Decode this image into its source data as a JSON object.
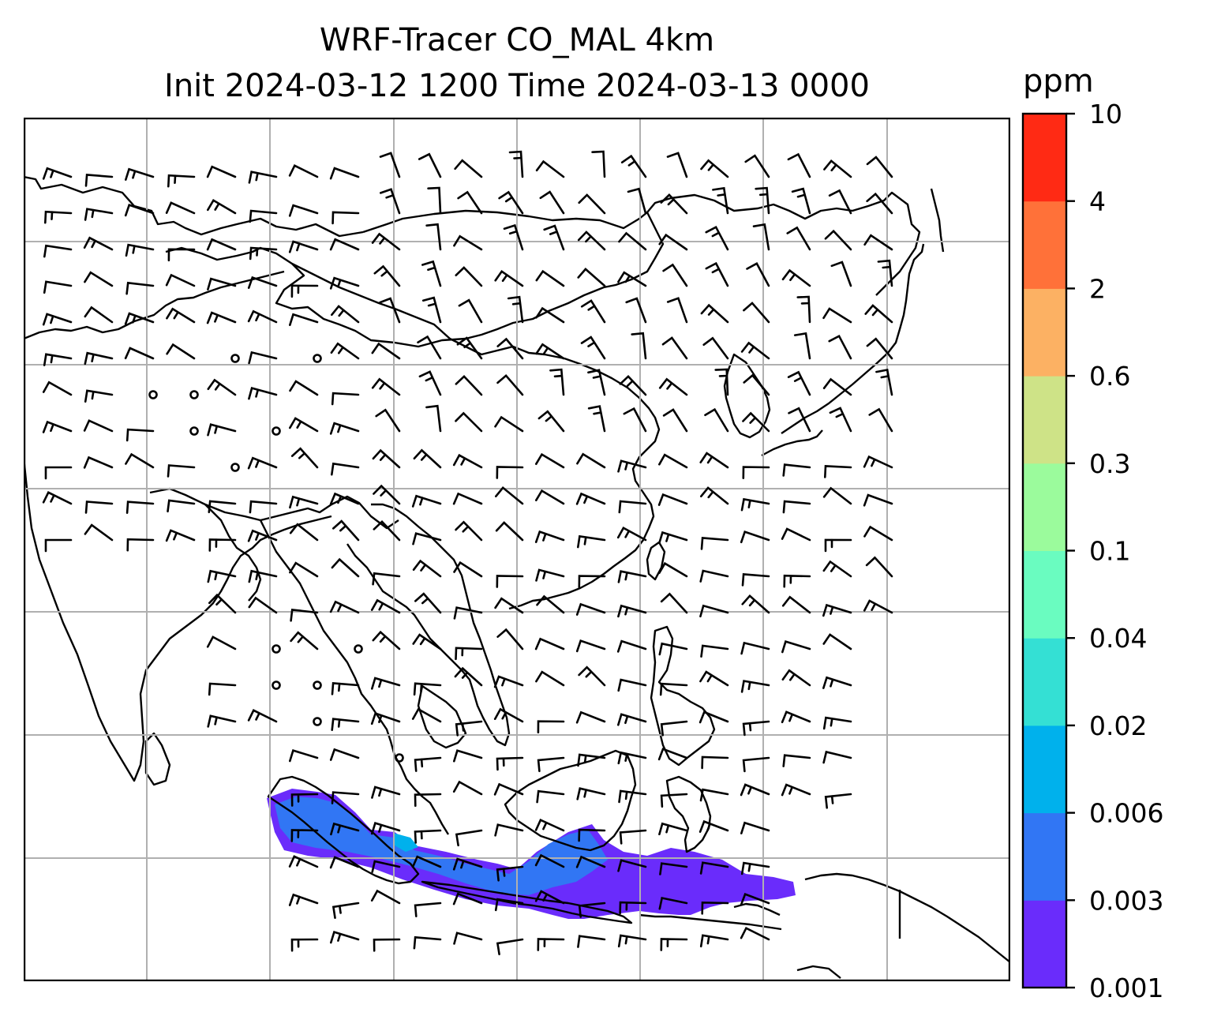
{
  "title": {
    "line1": "WRF-Tracer CO_MAL 4km",
    "line2": "Init 2024-03-12 1200 Time 2024-03-13 0000"
  },
  "colorbar": {
    "unit": "ppm",
    "levels": [
      "0.001",
      "0.003",
      "0.006",
      "0.02",
      "0.04",
      "0.1",
      "0.3",
      "0.6",
      "2",
      "4",
      "10"
    ],
    "colors": [
      "#6a2cfb",
      "#3176f4",
      "#00b1ec",
      "#34e0d4",
      "#6afcc0",
      "#9bfb9c",
      "#cee387",
      "#fcb163",
      "#ff7139",
      "#ff2a14"
    ]
  },
  "map": {
    "gridline_color": "#b0b0b0",
    "coast_color": "#000000",
    "plume_colors": {
      "low": "#6a2cfb",
      "mid": "#3176f4",
      "high": "#00b1ec"
    }
  }
}
